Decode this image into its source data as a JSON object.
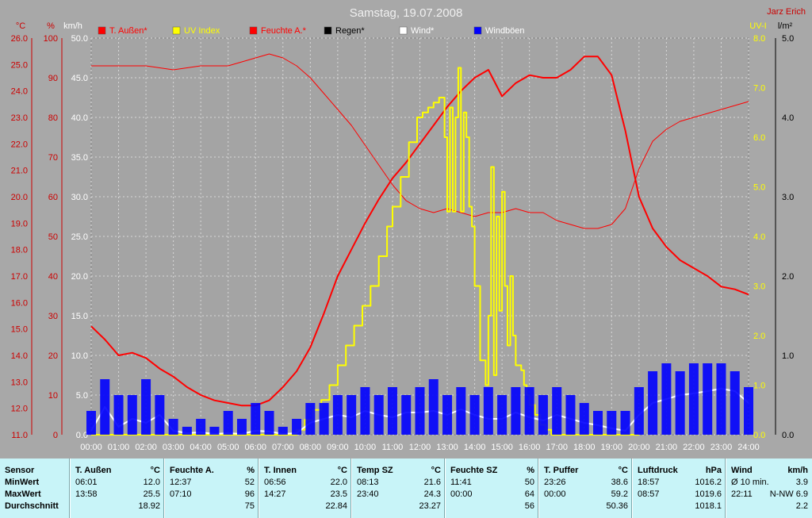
{
  "title": "Samstag, 19.07.2008",
  "author": "Jarz Erich",
  "legend": [
    {
      "label": "T. Außen*",
      "color": "#ff0000",
      "text_color": "#ff0000"
    },
    {
      "label": "UV Index",
      "color": "#ffff00",
      "text_color": "#ffff00"
    },
    {
      "label": "Feuchte A.*",
      "color": "#ff0000",
      "text_color": "#ff0000"
    },
    {
      "label": "Regen*",
      "color": "#000000",
      "text_color": "#000000"
    },
    {
      "label": "Wind*",
      "color": "#ffffff",
      "text_color": "#ffffff"
    },
    {
      "label": "Windböen",
      "color": "#0000ff",
      "text_color": "#ffffff"
    }
  ],
  "chart_data": {
    "type": "line",
    "title": "Samstag, 19.07.2008",
    "grid": true,
    "x_ticks": [
      "00:00",
      "01:00",
      "02:00",
      "03:00",
      "04:00",
      "05:00",
      "06:00",
      "07:00",
      "08:00",
      "09:00",
      "10:00",
      "11:00",
      "12:00",
      "13:00",
      "14:00",
      "15:00",
      "16:00",
      "17:00",
      "18:00",
      "19:00",
      "20:00",
      "21:00",
      "22:00",
      "23:00",
      "24:00"
    ],
    "axes": {
      "temp_c": {
        "unit": "°C",
        "range": [
          11.0,
          26.0
        ],
        "ticks": [
          "26.0",
          "25.0",
          "24.0",
          "23.0",
          "22.0",
          "21.0",
          "20.0",
          "19.0",
          "18.0",
          "17.0",
          "16.0",
          "15.0",
          "14.0",
          "13.0",
          "12.0",
          "11.0"
        ]
      },
      "humidity_pct": {
        "unit": "%",
        "range": [
          0,
          100
        ],
        "ticks": [
          "100",
          "90",
          "80",
          "70",
          "60",
          "50",
          "40",
          "30",
          "20",
          "10",
          "0"
        ]
      },
      "wind_kmh": {
        "unit": "km/h",
        "range": [
          0,
          50
        ],
        "ticks": [
          "50.0",
          "45.0",
          "40.0",
          "35.0",
          "30.0",
          "25.0",
          "20.0",
          "15.0",
          "10.0",
          "5.0",
          "0.0"
        ]
      },
      "uv": {
        "unit": "UV-I",
        "range": [
          0,
          8
        ],
        "ticks": [
          "8.0",
          "7.0",
          "6.0",
          "5.0",
          "4.0",
          "3.0",
          "2.0",
          "1.0",
          "0.0"
        ]
      },
      "rain": {
        "unit": "l/m²",
        "range": [
          0,
          5
        ],
        "ticks": [
          "5.0",
          "4.0",
          "3.0",
          "2.0",
          "1.0",
          "0.0"
        ]
      }
    },
    "series": [
      {
        "name": "T. Außen*",
        "axis": "temp_c",
        "color": "#ff0000",
        "width": 2,
        "x": [
          0,
          0.5,
          1,
          1.5,
          2,
          2.5,
          3,
          3.5,
          4,
          4.5,
          5,
          5.5,
          6,
          6.5,
          7,
          7.5,
          8,
          8.5,
          9,
          9.5,
          10,
          10.5,
          11,
          11.5,
          12,
          12.5,
          13,
          13.5,
          14,
          14.5,
          15,
          15.5,
          16,
          16.5,
          17,
          17.5,
          18,
          18.5,
          19,
          19.5,
          20,
          20.5,
          21,
          21.5,
          22,
          22.5,
          23,
          23.5,
          24
        ],
        "y": [
          15.1,
          14.6,
          14.0,
          14.1,
          13.9,
          13.5,
          13.2,
          12.8,
          12.5,
          12.3,
          12.2,
          12.1,
          12.1,
          12.3,
          12.8,
          13.4,
          14.3,
          15.6,
          17.0,
          18.0,
          19.0,
          19.9,
          20.7,
          21.3,
          22.0,
          22.7,
          23.4,
          24.0,
          24.5,
          24.8,
          23.8,
          24.3,
          24.6,
          24.5,
          24.5,
          24.8,
          25.3,
          25.3,
          24.6,
          22.5,
          20.0,
          18.8,
          18.1,
          17.6,
          17.3,
          17.0,
          16.6,
          16.5,
          16.3
        ]
      },
      {
        "name": "Feuchte A.*",
        "axis": "humidity_pct",
        "color": "#ff0000",
        "width": 1,
        "x": [
          0,
          1,
          2,
          3,
          4,
          5,
          6,
          6.5,
          7,
          7.5,
          8,
          8.5,
          9,
          9.5,
          10,
          10.5,
          11,
          11.5,
          12,
          12.5,
          13,
          13.5,
          14,
          14.5,
          15,
          15.5,
          16,
          16.5,
          17,
          17.5,
          18,
          18.5,
          19,
          19.5,
          20,
          20.5,
          21,
          21.5,
          22,
          22.5,
          23,
          23.5,
          24
        ],
        "y": [
          93,
          93,
          93,
          92,
          93,
          93,
          95,
          96,
          95,
          93,
          90,
          86,
          82,
          78,
          73,
          68,
          63,
          59,
          57,
          56,
          57,
          56,
          55,
          56,
          56,
          57,
          56,
          56,
          54,
          53,
          52,
          52,
          53,
          57,
          67,
          74,
          77,
          79,
          80,
          81,
          82,
          83,
          84
        ]
      },
      {
        "name": "UV Index",
        "axis": "uv",
        "color": "#ffff00",
        "width": 2,
        "step": true,
        "x": [
          0,
          7.3,
          7.5,
          7.8,
          8.1,
          8.4,
          8.7,
          9.0,
          9.3,
          9.6,
          9.9,
          10.2,
          10.5,
          10.8,
          11.0,
          11.3,
          11.6,
          11.9,
          12.1,
          12.3,
          12.5,
          12.7,
          12.9,
          13.0,
          13.1,
          13.2,
          13.3,
          13.4,
          13.5,
          13.6,
          13.7,
          13.8,
          13.9,
          14.0,
          14.2,
          14.4,
          14.5,
          14.6,
          14.7,
          14.8,
          14.9,
          15.0,
          15.1,
          15.2,
          15.3,
          15.4,
          15.5,
          15.6,
          15.7,
          15.8,
          15.9,
          16.0,
          16.2,
          16.4,
          16.6,
          16.8,
          17.0,
          17.2,
          17.5,
          17.8,
          18.0,
          18.3,
          18.6,
          19.0,
          19.3,
          20
        ],
        "y": [
          0,
          0,
          0.1,
          0.3,
          0.5,
          0.7,
          1.0,
          1.4,
          1.8,
          2.2,
          2.6,
          3.0,
          3.6,
          4.2,
          4.6,
          5.2,
          5.9,
          6.4,
          6.5,
          6.6,
          6.7,
          6.8,
          6.0,
          4.5,
          6.6,
          4.5,
          6.4,
          7.4,
          4.5,
          6.5,
          6.0,
          4.6,
          4.2,
          3.0,
          1.5,
          1.0,
          2.4,
          5.4,
          1.2,
          4.4,
          2.5,
          4.9,
          3.0,
          1.8,
          3.2,
          2.0,
          1.4,
          1.4,
          1.3,
          1.0,
          0.8,
          0.6,
          0.4,
          0.2,
          0.1,
          0,
          0,
          0,
          0,
          0,
          0,
          0,
          0,
          0,
          0,
          0
        ]
      },
      {
        "name": "Wind*",
        "axis": "wind_kmh",
        "color": "#ffffff",
        "width": 2,
        "x": [
          0,
          0.5,
          1,
          1.5,
          2,
          2.5,
          3,
          3.5,
          4,
          4.5,
          5,
          5.5,
          6,
          6.5,
          7,
          7.5,
          8,
          8.5,
          9,
          9.5,
          10,
          10.5,
          11,
          11.5,
          12,
          12.5,
          13,
          13.5,
          14,
          14.5,
          15,
          15.5,
          16,
          16.5,
          17,
          17.5,
          18,
          18.5,
          19,
          19.5,
          20,
          20.5,
          21,
          21.5,
          22,
          22.5,
          23,
          23.5,
          24
        ],
        "y": [
          0.5,
          3.5,
          1.0,
          2.0,
          1.5,
          2.5,
          0.5,
          0.2,
          0.3,
          0.1,
          0.2,
          0.1,
          0.5,
          0.4,
          0.1,
          0.2,
          1.5,
          2.0,
          2.5,
          2.2,
          3.0,
          2.5,
          2.2,
          2.8,
          2.8,
          3.0,
          2.5,
          3.2,
          2.5,
          2.0,
          2.0,
          2.8,
          2.2,
          1.8,
          2.5,
          2.0,
          1.5,
          1.2,
          0.8,
          0.5,
          2.5,
          4.0,
          4.5,
          5.0,
          5.2,
          5.5,
          5.8,
          5.5,
          4.0
        ]
      },
      {
        "name": "Windböen",
        "axis": "wind_kmh",
        "color": "#0000ff",
        "bars": true,
        "x": [
          0,
          0.5,
          1,
          1.5,
          2,
          2.5,
          3,
          3.5,
          4,
          4.5,
          5,
          5.5,
          6,
          6.5,
          7,
          7.5,
          8,
          8.5,
          9,
          9.5,
          10,
          10.5,
          11,
          11.5,
          12,
          12.5,
          13,
          13.5,
          14,
          14.5,
          15,
          15.5,
          16,
          16.5,
          17,
          17.5,
          18,
          18.5,
          19,
          19.5,
          20,
          20.5,
          21,
          21.5,
          22,
          22.5,
          23,
          23.5,
          24
        ],
        "y": [
          3,
          7,
          5,
          5,
          7,
          5,
          2,
          1,
          2,
          1,
          3,
          2,
          4,
          3,
          1,
          2,
          4,
          4,
          5,
          5,
          6,
          5,
          6,
          5,
          6,
          7,
          5,
          6,
          5,
          6,
          5,
          6,
          6,
          5,
          6,
          5,
          4,
          3,
          3,
          3,
          6,
          8,
          9,
          8,
          9,
          9,
          9,
          8,
          6
        ]
      }
    ]
  },
  "stats_table": {
    "row_labels": [
      "Sensor",
      "MinWert",
      "MaxWert",
      "Durchschnitt"
    ],
    "columns": [
      {
        "name": "T. Außen",
        "unit": "°C",
        "rows": [
          [
            "06:01",
            "12.0"
          ],
          [
            "13:58",
            "25.5"
          ],
          [
            "",
            "18.92"
          ]
        ]
      },
      {
        "name": "Feuchte A.",
        "unit": "%",
        "rows": [
          [
            "12:37",
            "52"
          ],
          [
            "07:10",
            "96"
          ],
          [
            "",
            "75"
          ]
        ]
      },
      {
        "name": "T. Innen",
        "unit": "°C",
        "rows": [
          [
            "06:56",
            "22.0"
          ],
          [
            "14:27",
            "23.5"
          ],
          [
            "",
            "22.84"
          ]
        ]
      },
      {
        "name": "Temp SZ",
        "unit": "°C",
        "rows": [
          [
            "08:13",
            "21.6"
          ],
          [
            "23:40",
            "24.3"
          ],
          [
            "",
            "23.27"
          ]
        ]
      },
      {
        "name": "Feuchte SZ",
        "unit": "%",
        "rows": [
          [
            "11:41",
            "50"
          ],
          [
            "00:00",
            "64"
          ],
          [
            "",
            "56"
          ]
        ]
      },
      {
        "name": "T. Puffer",
        "unit": "°C",
        "rows": [
          [
            "23:26",
            "38.6"
          ],
          [
            "00:00",
            "59.2"
          ],
          [
            "",
            "50.36"
          ]
        ]
      },
      {
        "name": "Luftdruck",
        "unit": "hPa",
        "rows": [
          [
            "18:57",
            "1016.2"
          ],
          [
            "08:57",
            "1019.6"
          ],
          [
            "",
            "1018.1"
          ]
        ]
      },
      {
        "name": "Wind",
        "unit": "km/h",
        "rows": [
          [
            "Ø 10 min.",
            "3.9"
          ],
          [
            "22:11",
            "N-NW 6.9"
          ],
          [
            "",
            "2.2"
          ]
        ]
      }
    ]
  }
}
